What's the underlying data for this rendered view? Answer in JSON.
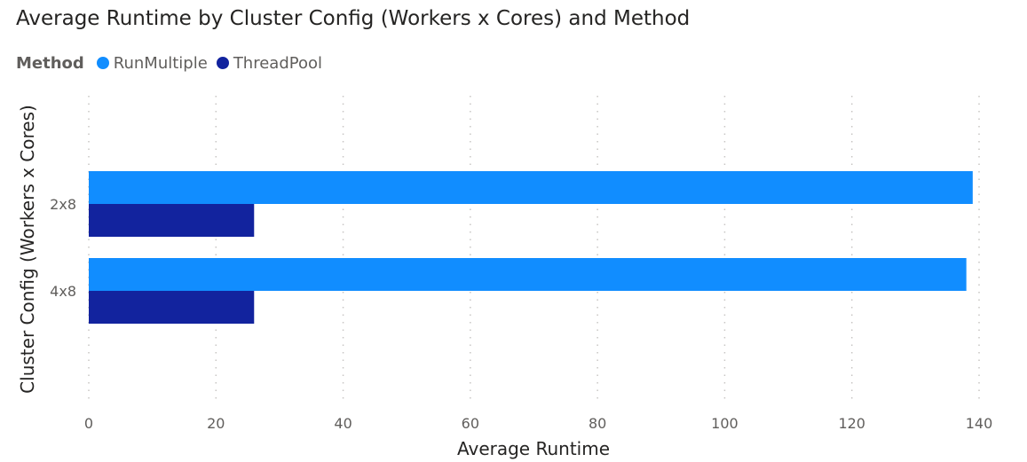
{
  "chart_data": {
    "type": "bar",
    "orientation": "horizontal",
    "title": "Average Runtime by Cluster Config (Workers x Cores) and Method",
    "legend_title": "Method",
    "legend_position": "top-left",
    "xlabel": "Average Runtime",
    "ylabel": "Cluster Config (Workers x Cores)",
    "categories": [
      "2x8",
      "4x8"
    ],
    "xlim": [
      0,
      140
    ],
    "x_ticks": [
      0,
      20,
      40,
      60,
      80,
      100,
      120,
      140
    ],
    "grid": true,
    "series": [
      {
        "name": "RunMultiple",
        "color": "#118DFF",
        "values": [
          139,
          138
        ]
      },
      {
        "name": "ThreadPool",
        "color": "#12239E",
        "values": [
          26,
          26
        ]
      }
    ]
  }
}
